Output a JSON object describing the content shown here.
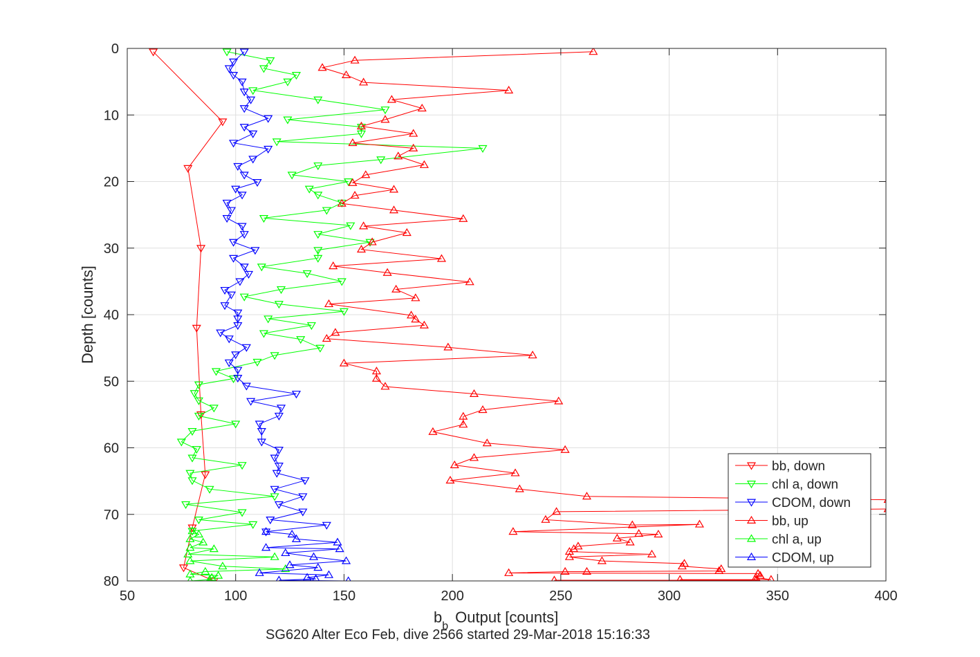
{
  "chart_data": {
    "type": "line",
    "xlabel_main": "b",
    "xlabel_sub": "b",
    "xlabel_rest": "Output [counts]",
    "ylabel": "Depth [counts]",
    "caption": "SG620 Alter Eco Feb, dive 2566 started 29-Mar-2018 15:16:33",
    "xlim": [
      50,
      400
    ],
    "ylim": [
      0,
      80
    ],
    "y_reversed": true,
    "grid": true,
    "xticks": [
      50,
      100,
      150,
      200,
      250,
      300,
      350,
      400
    ],
    "yticks": [
      0,
      10,
      20,
      30,
      40,
      50,
      60,
      70,
      80
    ],
    "legend_position": "bottom-right",
    "series": [
      {
        "name": "bb, down",
        "color": "#ff0000",
        "marker": "triangle-down",
        "points": [
          [
            62,
            0.5
          ],
          [
            94,
            11
          ],
          [
            78,
            18
          ],
          [
            84,
            30
          ],
          [
            82,
            42
          ],
          [
            84,
            55
          ],
          [
            86,
            64
          ],
          [
            80,
            72
          ],
          [
            76,
            78
          ],
          [
            90,
            80
          ]
        ]
      },
      {
        "name": "chl a, down",
        "color": "#00ff00",
        "marker": "triangle-down",
        "points": [
          [
            96,
            0.5
          ],
          [
            116,
            1.8
          ],
          [
            113,
            3
          ],
          [
            128,
            4
          ],
          [
            124,
            5
          ],
          [
            108,
            6.3
          ],
          [
            138,
            7.7
          ],
          [
            169,
            9.2
          ],
          [
            124,
            10.7
          ],
          [
            158,
            11.8
          ],
          [
            158,
            12.8
          ],
          [
            119,
            14
          ],
          [
            214,
            15
          ],
          [
            167,
            16.7
          ],
          [
            138,
            17.6
          ],
          [
            126,
            19
          ],
          [
            152,
            20
          ],
          [
            134,
            21.1
          ],
          [
            138,
            22
          ],
          [
            149,
            23.2
          ],
          [
            142,
            24.3
          ],
          [
            113,
            25.5
          ],
          [
            153,
            26.6
          ],
          [
            138,
            27.9
          ],
          [
            162,
            29.1
          ],
          [
            138,
            30.3
          ],
          [
            138,
            31.5
          ],
          [
            112,
            32.8
          ],
          [
            133,
            33.8
          ],
          [
            149,
            35
          ],
          [
            121,
            36.2
          ],
          [
            104,
            37.3
          ],
          [
            120,
            38.4
          ],
          [
            150,
            39.5
          ],
          [
            115,
            40.6
          ],
          [
            135,
            41.6
          ],
          [
            113,
            42.8
          ],
          [
            130,
            43.7
          ],
          [
            139,
            45
          ],
          [
            118,
            46.1
          ],
          [
            110,
            47.1
          ],
          [
            91,
            48.5
          ],
          [
            99,
            49.6
          ],
          [
            83,
            50.5
          ],
          [
            81,
            51.8
          ],
          [
            83,
            52.9
          ],
          [
            90,
            54
          ],
          [
            83,
            55.2
          ],
          [
            100,
            56.4
          ],
          [
            80,
            57.5
          ],
          [
            75,
            59.1
          ],
          [
            82,
            60.2
          ],
          [
            80,
            61.5
          ],
          [
            103,
            62.6
          ],
          [
            79,
            63.8
          ],
          [
            80,
            64.9
          ],
          [
            88,
            66.2
          ],
          [
            118,
            67.3
          ],
          [
            77,
            68.5
          ],
          [
            103,
            69.7
          ],
          [
            83,
            70.8
          ],
          [
            108,
            71.5
          ],
          [
            80,
            72.5
          ]
        ]
      },
      {
        "name": "CDOM, down",
        "color": "#0000ff",
        "marker": "triangle-down",
        "points": [
          [
            104,
            0.5
          ],
          [
            99,
            2
          ],
          [
            97,
            3
          ],
          [
            99,
            4
          ],
          [
            103,
            5
          ],
          [
            104,
            6.5
          ],
          [
            107,
            7.7
          ],
          [
            104,
            9
          ],
          [
            115,
            10.5
          ],
          [
            104,
            11.8
          ],
          [
            108,
            12.8
          ],
          [
            99,
            14.2
          ],
          [
            115,
            15.1
          ],
          [
            108,
            16.6
          ],
          [
            101,
            17.7
          ],
          [
            104,
            19
          ],
          [
            110,
            20.1
          ],
          [
            100,
            21.1
          ],
          [
            103,
            22
          ],
          [
            96,
            23.2
          ],
          [
            98,
            24.3
          ],
          [
            96,
            25.5
          ],
          [
            103,
            26.7
          ],
          [
            104,
            27.9
          ],
          [
            99,
            29.1
          ],
          [
            109,
            30.3
          ],
          [
            99,
            31.5
          ],
          [
            104,
            32.8
          ],
          [
            106,
            33.9
          ],
          [
            102,
            35
          ],
          [
            95,
            36.3
          ],
          [
            98,
            37
          ],
          [
            95,
            38.6
          ],
          [
            101,
            39.7
          ],
          [
            101,
            40.6
          ],
          [
            101,
            41.6
          ],
          [
            93,
            42.7
          ],
          [
            97,
            43.6
          ],
          [
            105,
            44.9
          ],
          [
            100,
            46
          ],
          [
            97,
            47.2
          ],
          [
            101,
            48.3
          ],
          [
            101,
            49.5
          ],
          [
            105,
            50.7
          ],
          [
            128,
            51.9
          ],
          [
            107,
            53
          ],
          [
            121,
            54
          ],
          [
            120,
            55.2
          ],
          [
            111,
            56.4
          ],
          [
            112,
            57.5
          ],
          [
            112,
            59.1
          ],
          [
            120,
            60.3
          ],
          [
            118,
            61.5
          ],
          [
            120,
            62.7
          ],
          [
            119,
            63.8
          ],
          [
            132,
            64.9
          ],
          [
            118,
            66.2
          ],
          [
            131,
            67.3
          ],
          [
            120,
            68.5
          ],
          [
            131,
            69.6
          ],
          [
            116,
            70.8
          ],
          [
            142,
            71.6
          ],
          [
            114,
            72.6
          ]
        ]
      },
      {
        "name": "bb, up",
        "color": "#ff0000",
        "marker": "triangle-up",
        "points": [
          [
            265,
            0.5
          ],
          [
            155,
            1.8
          ],
          [
            140,
            2.9
          ],
          [
            151,
            4
          ],
          [
            159,
            5.1
          ],
          [
            226,
            6.3
          ],
          [
            172,
            7.7
          ],
          [
            186,
            9
          ],
          [
            169,
            10.7
          ],
          [
            158,
            11.7
          ],
          [
            182,
            12.8
          ],
          [
            154,
            14.2
          ],
          [
            182,
            15
          ],
          [
            175,
            16.2
          ],
          [
            187,
            17.5
          ],
          [
            160,
            19
          ],
          [
            154,
            20.2
          ],
          [
            173,
            21.2
          ],
          [
            155,
            22.1
          ],
          [
            149,
            23.3
          ],
          [
            173,
            24.3
          ],
          [
            205,
            25.6
          ],
          [
            159,
            26.7
          ],
          [
            179,
            27.7
          ],
          [
            163,
            29.1
          ],
          [
            158,
            30.2
          ],
          [
            195,
            31.6
          ],
          [
            145,
            32.7
          ],
          [
            170,
            33.7
          ],
          [
            208,
            35.1
          ],
          [
            174,
            36.2
          ],
          [
            183,
            37.5
          ],
          [
            143,
            38.4
          ],
          [
            181,
            40.1
          ],
          [
            183,
            40.7
          ],
          [
            187,
            41.6
          ],
          [
            146,
            42.7
          ],
          [
            142,
            43.6
          ],
          [
            198,
            44.9
          ],
          [
            237,
            46.1
          ],
          [
            150,
            47.3
          ],
          [
            165,
            48.5
          ],
          [
            165,
            49.6
          ],
          [
            169,
            50.8
          ],
          [
            210,
            51.9
          ],
          [
            249,
            53
          ],
          [
            214,
            54.3
          ],
          [
            205,
            55.3
          ],
          [
            205,
            56.5
          ],
          [
            191,
            57.6
          ],
          [
            216,
            59.3
          ],
          [
            252,
            60.3
          ],
          [
            210,
            61.5
          ],
          [
            201,
            62.6
          ],
          [
            229,
            63.8
          ],
          [
            199,
            64.9
          ],
          [
            231,
            66.2
          ],
          [
            262,
            67.3
          ],
          [
            401,
            67.8
          ],
          [
            401,
            69.2
          ],
          [
            248,
            69.6
          ],
          [
            243,
            70.8
          ],
          [
            283,
            71.6
          ],
          [
            314,
            71.5
          ],
          [
            228,
            72.6
          ],
          [
            286,
            72.9
          ],
          [
            295,
            73
          ],
          [
            276,
            73.6
          ],
          [
            282,
            74.2
          ],
          [
            258,
            74.8
          ],
          [
            256,
            75.2
          ],
          [
            254,
            75.6
          ],
          [
            292,
            76
          ],
          [
            254,
            76.4
          ],
          [
            269,
            77
          ],
          [
            307,
            77.4
          ],
          [
            306,
            77.8
          ],
          [
            324,
            78.2
          ],
          [
            323,
            78.5
          ],
          [
            262,
            78.6
          ],
          [
            252,
            78.6
          ],
          [
            226,
            78.8
          ],
          [
            341,
            78.9
          ],
          [
            342,
            79.2
          ],
          [
            340,
            79.5
          ],
          [
            347,
            79.8
          ],
          [
            305,
            79.8
          ],
          [
            340,
            79.9
          ],
          [
            247,
            79.9
          ]
        ]
      },
      {
        "name": "chl a, up",
        "color": "#00ff00",
        "marker": "triangle-up",
        "points": [
          [
            80,
            72.5
          ],
          [
            83,
            73
          ],
          [
            79,
            73.7
          ],
          [
            85,
            74.2
          ],
          [
            79,
            75
          ],
          [
            90,
            75.2
          ],
          [
            78,
            76
          ],
          [
            118,
            76.4
          ],
          [
            79,
            77
          ],
          [
            94,
            77.8
          ],
          [
            123,
            78.2
          ],
          [
            86,
            78.6
          ],
          [
            79,
            79
          ],
          [
            92,
            79.2
          ],
          [
            89,
            79.5
          ],
          [
            88,
            79.8
          ],
          [
            79,
            80
          ]
        ]
      },
      {
        "name": "CDOM, up",
        "color": "#0000ff",
        "marker": "triangle-up",
        "points": [
          [
            114,
            72.6
          ],
          [
            126,
            73
          ],
          [
            128,
            73.7
          ],
          [
            147,
            74.2
          ],
          [
            114,
            75
          ],
          [
            148,
            75.2
          ],
          [
            123,
            75.8
          ],
          [
            136,
            76.4
          ],
          [
            151,
            77
          ],
          [
            125,
            77.6
          ],
          [
            138,
            78
          ],
          [
            111,
            78.8
          ],
          [
            143,
            79.1
          ],
          [
            133,
            79.5
          ],
          [
            137,
            79.7
          ],
          [
            120,
            79.9
          ],
          [
            152,
            80
          ]
        ]
      }
    ]
  }
}
